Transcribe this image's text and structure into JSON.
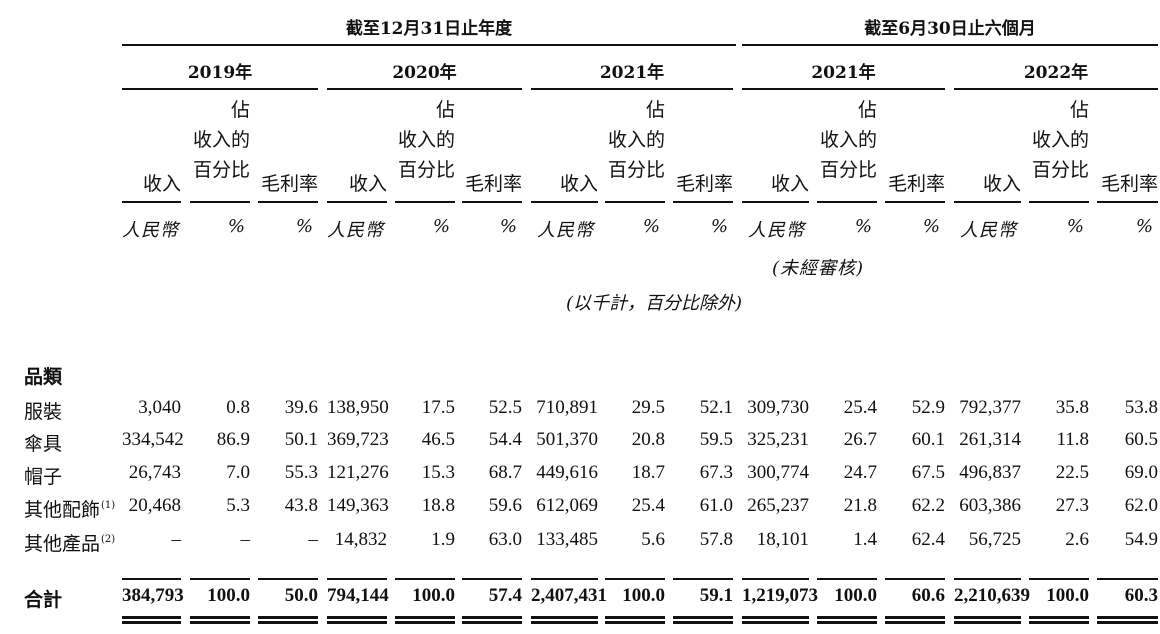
{
  "header": {
    "group_annual": "截至12月31日止年度",
    "group_six_months": "截至6月30日止六個月",
    "years": [
      "2019年",
      "2020年",
      "2021年",
      "2021年",
      "2022年"
    ],
    "col_revenue": "收入",
    "col_pct": "佔\n收入的\n百分比",
    "col_margin": "毛利率",
    "unit_rmb": "人民幣",
    "unit_pct": "%",
    "unaudited": "(未經審核)",
    "note": "(以千計，百分比除外)"
  },
  "section_title": "品類",
  "rows": [
    {
      "label": "服裝",
      "sup": "",
      "values": [
        "3,040",
        "0.8",
        "39.6",
        "138,950",
        "17.5",
        "52.5",
        "710,891",
        "29.5",
        "52.1",
        "309,730",
        "25.4",
        "52.9",
        "792,377",
        "35.8",
        "53.8"
      ]
    },
    {
      "label": "傘具",
      "sup": "",
      "values": [
        "334,542",
        "86.9",
        "50.1",
        "369,723",
        "46.5",
        "54.4",
        "501,370",
        "20.8",
        "59.5",
        "325,231",
        "26.7",
        "60.1",
        "261,314",
        "11.8",
        "60.5"
      ]
    },
    {
      "label": "帽子",
      "sup": "",
      "values": [
        "26,743",
        "7.0",
        "55.3",
        "121,276",
        "15.3",
        "68.7",
        "449,616",
        "18.7",
        "67.3",
        "300,774",
        "24.7",
        "67.5",
        "496,837",
        "22.5",
        "69.0"
      ]
    },
    {
      "label": "其他配飾",
      "sup": "(1)",
      "values": [
        "20,468",
        "5.3",
        "43.8",
        "149,363",
        "18.8",
        "59.6",
        "612,069",
        "25.4",
        "61.0",
        "265,237",
        "21.8",
        "62.2",
        "603,386",
        "27.3",
        "62.0"
      ]
    },
    {
      "label": "其他產品",
      "sup": "(2)",
      "values": [
        "–",
        "–",
        "–",
        "14,832",
        "1.9",
        "63.0",
        "133,485",
        "5.6",
        "57.8",
        "18,101",
        "1.4",
        "62.4",
        "56,725",
        "2.6",
        "54.9"
      ]
    }
  ],
  "total": {
    "label": "合計",
    "values": [
      "384,793",
      "100.0",
      "50.0",
      "794,144",
      "100.0",
      "57.4",
      "2,407,431",
      "100.0",
      "59.1",
      "1,219,073",
      "100.0",
      "60.6",
      "2,210,639",
      "100.0",
      "60.3"
    ]
  }
}
